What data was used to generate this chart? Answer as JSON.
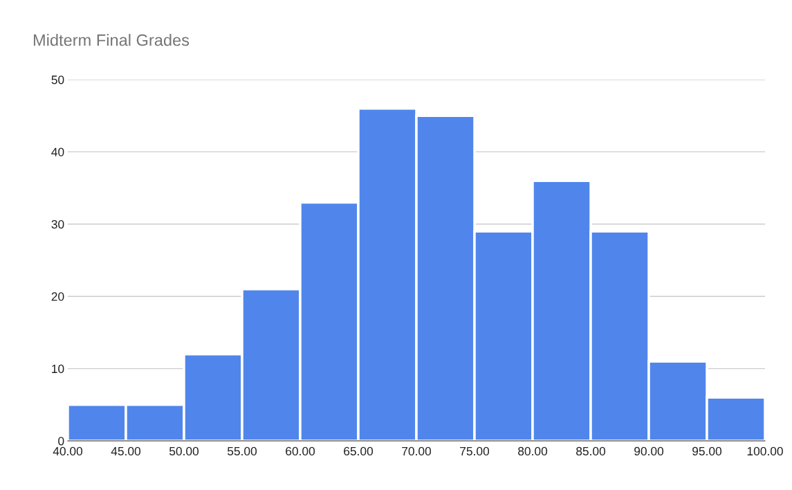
{
  "chart_data": {
    "type": "histogram",
    "title": "Midterm Final Grades",
    "bins": [
      40,
      45,
      50,
      55,
      60,
      65,
      70,
      75,
      80,
      85,
      90,
      95,
      100
    ],
    "values": [
      5,
      5,
      12,
      21,
      33,
      46,
      45,
      29,
      36,
      29,
      11,
      6
    ],
    "color": "#5086ec",
    "xlim": [
      40,
      100
    ],
    "xticks": [
      {
        "value": 40,
        "label": "40.00"
      },
      {
        "value": 45,
        "label": "45.00"
      },
      {
        "value": 50,
        "label": "50.00"
      },
      {
        "value": 55,
        "label": "55.00"
      },
      {
        "value": 60,
        "label": "60.00"
      },
      {
        "value": 65,
        "label": "65.00"
      },
      {
        "value": 70,
        "label": "70.00"
      },
      {
        "value": 75,
        "label": "75.00"
      },
      {
        "value": 80,
        "label": "80.00"
      },
      {
        "value": 85,
        "label": "85.00"
      },
      {
        "value": 90,
        "label": "90.00"
      },
      {
        "value": 95,
        "label": "95.00"
      },
      {
        "value": 100,
        "label": "100.00"
      }
    ],
    "ylim": [
      0,
      50
    ],
    "yticks": [
      0,
      10,
      20,
      30,
      40,
      50
    ],
    "grid": "y",
    "legend": false
  }
}
